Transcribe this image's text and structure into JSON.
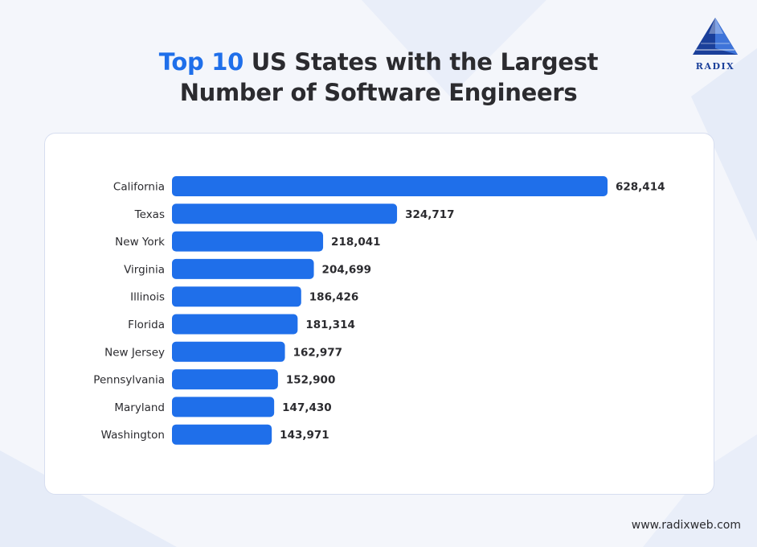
{
  "header": {
    "title_accent": "Top 10",
    "title_rest_line1": " US States with the Largest",
    "title_line2": "Number of Software Engineers"
  },
  "logo": {
    "text": "RADIX",
    "icon": "pyramid-logo-icon"
  },
  "footer": {
    "url": "www.radixweb.com"
  },
  "colors": {
    "bar": "#1f6fea",
    "accent": "#1f6fea",
    "text": "#2b2b2f"
  },
  "chart_data": {
    "type": "bar",
    "orientation": "horizontal",
    "title": "Top 10 US States with the Largest Number of Software Engineers",
    "xlabel": "",
    "ylabel": "",
    "grid": false,
    "categories": [
      "California",
      "Texas",
      "New York",
      "Virginia",
      "Illinois",
      "Florida",
      "New Jersey",
      "Pennsylvania",
      "Maryland",
      "Washington"
    ],
    "values": [
      628414,
      324717,
      218041,
      204699,
      186426,
      181314,
      162977,
      152900,
      147430,
      143971
    ],
    "value_labels": [
      "628,414",
      "324,717",
      "218,041",
      "204,699",
      "186,426",
      "181,314",
      "162,977",
      "152,900",
      "147,430",
      "143,971"
    ],
    "xlim": [
      0,
      628414
    ]
  }
}
